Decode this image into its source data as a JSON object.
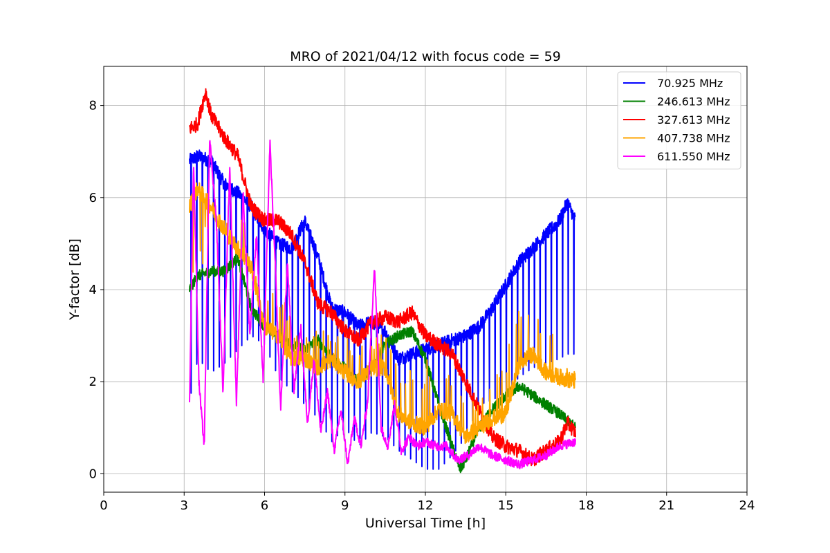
{
  "chart_data": {
    "type": "line",
    "title": "MRO of 2021/04/12 with focus code = 59",
    "xlabel": "Universal Time [h]",
    "ylabel": "Y-factor [dB]",
    "xlim": [
      0,
      24
    ],
    "ylim": [
      -0.4,
      8.85
    ],
    "xticks": [
      0,
      3,
      6,
      9,
      12,
      15,
      18,
      21,
      24
    ],
    "yticks": [
      0,
      2,
      4,
      6,
      8
    ],
    "grid": true,
    "legend_position": "top-right",
    "series": [
      {
        "name": " 70.925 MHz",
        "color": "#0000ff",
        "x": [
          3.2,
          3.5,
          4.0,
          4.5,
          5.0,
          5.5,
          6.0,
          6.5,
          7.0,
          7.5,
          8.0,
          8.5,
          9.0,
          9.5,
          10.0,
          10.5,
          11.0,
          11.5,
          12.0,
          12.5,
          13.0,
          13.5,
          14.0,
          14.5,
          15.0,
          15.5,
          16.0,
          16.5,
          17.0,
          17.3,
          17.6
        ],
        "y": [
          6.8,
          6.9,
          6.8,
          6.3,
          6.1,
          5.8,
          5.3,
          5.0,
          4.9,
          5.5,
          4.7,
          3.6,
          3.5,
          3.2,
          3.3,
          3.1,
          2.5,
          2.6,
          2.7,
          2.8,
          2.9,
          3.0,
          3.2,
          3.6,
          4.1,
          4.6,
          4.9,
          5.2,
          5.5,
          5.9,
          5.5
        ],
        "dips": [
          1.6,
          2.5,
          2.2,
          2.4,
          2.7,
          3.0,
          2.8,
          2.1,
          1.8,
          1.5,
          1.2,
          0.7,
          1.0,
          0.6,
          0.9,
          0.8,
          0.5,
          0.3,
          0.1,
          0.1,
          0.4,
          0.8,
          1.5,
          1.6,
          1.8,
          2.1,
          2.3,
          2.4,
          2.5,
          2.6,
          2.6
        ]
      },
      {
        "name": "246.613 MHz",
        "color": "#008000",
        "x": [
          3.2,
          3.5,
          4.0,
          4.5,
          5.0,
          5.5,
          6.0,
          6.5,
          7.0,
          7.5,
          8.0,
          8.5,
          9.0,
          9.5,
          10.0,
          10.5,
          11.0,
          11.5,
          12.0,
          12.5,
          13.0,
          13.3,
          13.5,
          14.0,
          14.5,
          15.0,
          15.5,
          16.0,
          16.5,
          17.0,
          17.6
        ],
        "y": [
          4.0,
          4.3,
          4.4,
          4.4,
          4.7,
          3.6,
          3.2,
          3.0,
          2.8,
          2.7,
          2.9,
          2.5,
          2.3,
          2.0,
          2.3,
          2.8,
          3.0,
          3.1,
          2.5,
          1.5,
          0.6,
          0.1,
          0.3,
          1.0,
          1.4,
          1.7,
          1.9,
          1.7,
          1.5,
          1.3,
          1.0
        ]
      },
      {
        "name": "327.613 MHz",
        "color": "#ff0000",
        "x": [
          3.2,
          3.5,
          3.8,
          4.0,
          4.5,
          5.0,
          5.5,
          6.0,
          6.5,
          7.0,
          7.5,
          8.0,
          8.5,
          9.0,
          9.5,
          10.0,
          10.5,
          11.0,
          11.5,
          12.0,
          12.5,
          13.0,
          13.5,
          14.0,
          14.5,
          15.0,
          15.5,
          16.0,
          16.5,
          17.0,
          17.3,
          17.6
        ],
        "y": [
          7.5,
          7.6,
          8.3,
          7.8,
          7.3,
          6.9,
          5.8,
          5.5,
          5.5,
          5.2,
          4.6,
          3.7,
          3.5,
          3.1,
          2.9,
          3.3,
          3.4,
          3.3,
          3.5,
          3.0,
          2.8,
          2.6,
          2.0,
          1.4,
          0.8,
          0.6,
          0.5,
          0.3,
          0.5,
          0.7,
          1.1,
          0.9
        ]
      },
      {
        "name": "407.738 MHz",
        "color": "#ffa500",
        "x": [
          3.2,
          3.5,
          4.0,
          4.5,
          5.0,
          5.5,
          6.0,
          6.5,
          7.0,
          7.5,
          8.0,
          8.5,
          9.0,
          9.5,
          10.0,
          10.5,
          11.0,
          11.5,
          12.0,
          12.5,
          13.0,
          13.5,
          14.0,
          14.5,
          15.0,
          15.5,
          16.0,
          16.5,
          17.0,
          17.6
        ],
        "y": [
          5.8,
          6.2,
          5.8,
          5.3,
          4.9,
          4.5,
          3.2,
          3.0,
          2.5,
          2.5,
          2.3,
          2.5,
          2.2,
          2.0,
          2.3,
          2.3,
          1.3,
          1.1,
          1.0,
          1.4,
          1.3,
          0.8,
          1.0,
          1.2,
          1.3,
          2.4,
          2.6,
          2.2,
          2.1,
          2.0
        ],
        "spikes": [
          4.4,
          3.8,
          5.9,
          5.5,
          6.3,
          4.7,
          3.8,
          4.4,
          3.3,
          3.0,
          3.2,
          3.0,
          3.0,
          2.8,
          2.9,
          3.1,
          2.2,
          2.3,
          2.6,
          2.8,
          2.2,
          1.6,
          1.8,
          2.1,
          2.6,
          3.8,
          3.9,
          3.5,
          2.5,
          2.2
        ]
      },
      {
        "name": "611.550 MHz",
        "color": "#ff00ff",
        "x": [
          3.2,
          3.35,
          3.55,
          3.75,
          3.95,
          4.2,
          4.45,
          4.7,
          4.95,
          5.2,
          5.45,
          5.7,
          5.95,
          6.2,
          6.4,
          6.6,
          6.85,
          7.1,
          7.35,
          7.6,
          7.85,
          8.1,
          8.35,
          8.6,
          8.85,
          9.1,
          9.35,
          9.6,
          9.85,
          10.1,
          10.35,
          10.6,
          10.85,
          11.1,
          11.4,
          11.7,
          12.0,
          12.4,
          12.8,
          13.2,
          13.6,
          14.0,
          14.5,
          15.0,
          15.5,
          16.0,
          16.5,
          17.0,
          17.6
        ],
        "y": [
          1.5,
          6.8,
          2.0,
          0.6,
          7.3,
          5.5,
          1.8,
          6.7,
          1.5,
          6.1,
          3.0,
          5.2,
          2.0,
          7.2,
          4.5,
          1.4,
          4.6,
          1.8,
          3.2,
          1.1,
          2.5,
          0.9,
          1.8,
          0.5,
          1.4,
          0.2,
          1.2,
          0.6,
          1.6,
          4.5,
          1.0,
          0.6,
          1.5,
          0.5,
          0.8,
          0.6,
          0.7,
          0.6,
          0.6,
          0.3,
          0.4,
          0.6,
          0.4,
          0.3,
          0.2,
          0.3,
          0.4,
          0.6,
          0.7
        ]
      }
    ]
  }
}
